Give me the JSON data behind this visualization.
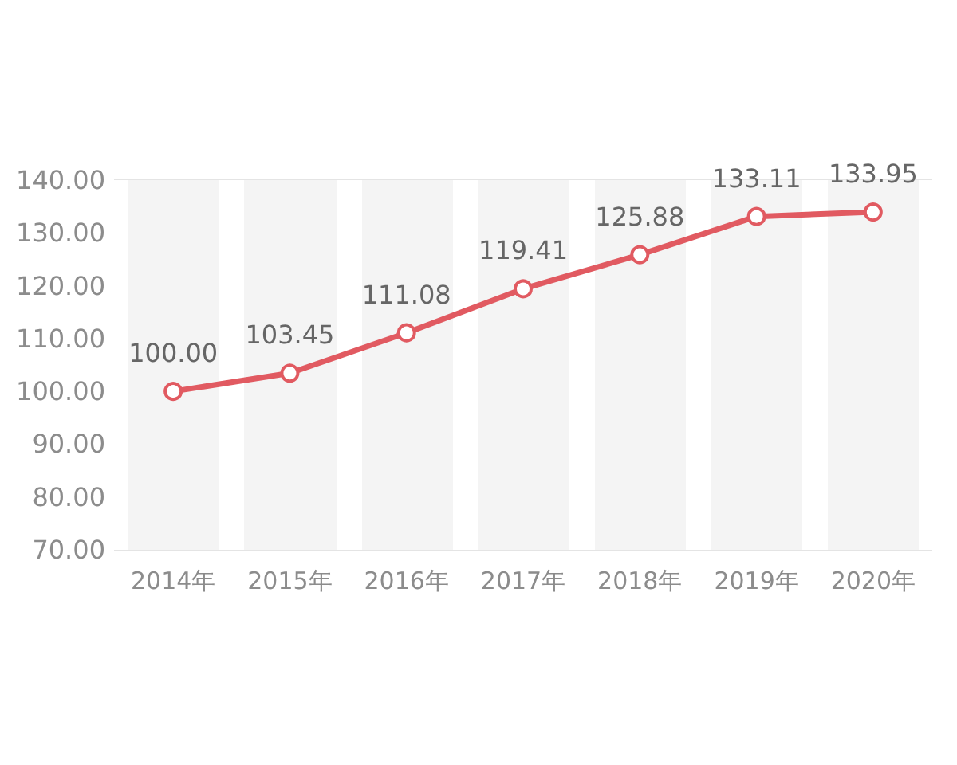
{
  "chart_data": {
    "type": "line",
    "categories": [
      "2014年",
      "2015年",
      "2016年",
      "2017年",
      "2018年",
      "2019年",
      "2020年"
    ],
    "series": [
      {
        "color": "#e15a61",
        "values": [
          100,
          103.45,
          111.08,
          119.41,
          125.88,
          133.11,
          133.95
        ],
        "value_labels": [
          "100.00",
          "103.45",
          "111.08",
          "119.41",
          "125.88",
          "133.11",
          "133.95"
        ]
      }
    ],
    "ylim": [
      70,
      140
    ],
    "yticks": [
      {
        "value": 70,
        "label": "70.00"
      },
      {
        "value": 80,
        "label": "80.00"
      },
      {
        "value": 90,
        "label": "90.00"
      },
      {
        "value": 100,
        "label": "100.00"
      },
      {
        "value": 110,
        "label": "110.00"
      },
      {
        "value": 120,
        "label": "120.00"
      },
      {
        "value": 130,
        "label": "130.00"
      },
      {
        "value": 140,
        "label": "140.00"
      }
    ],
    "grid": "x",
    "marker": "circle",
    "line_style": "solid"
  }
}
